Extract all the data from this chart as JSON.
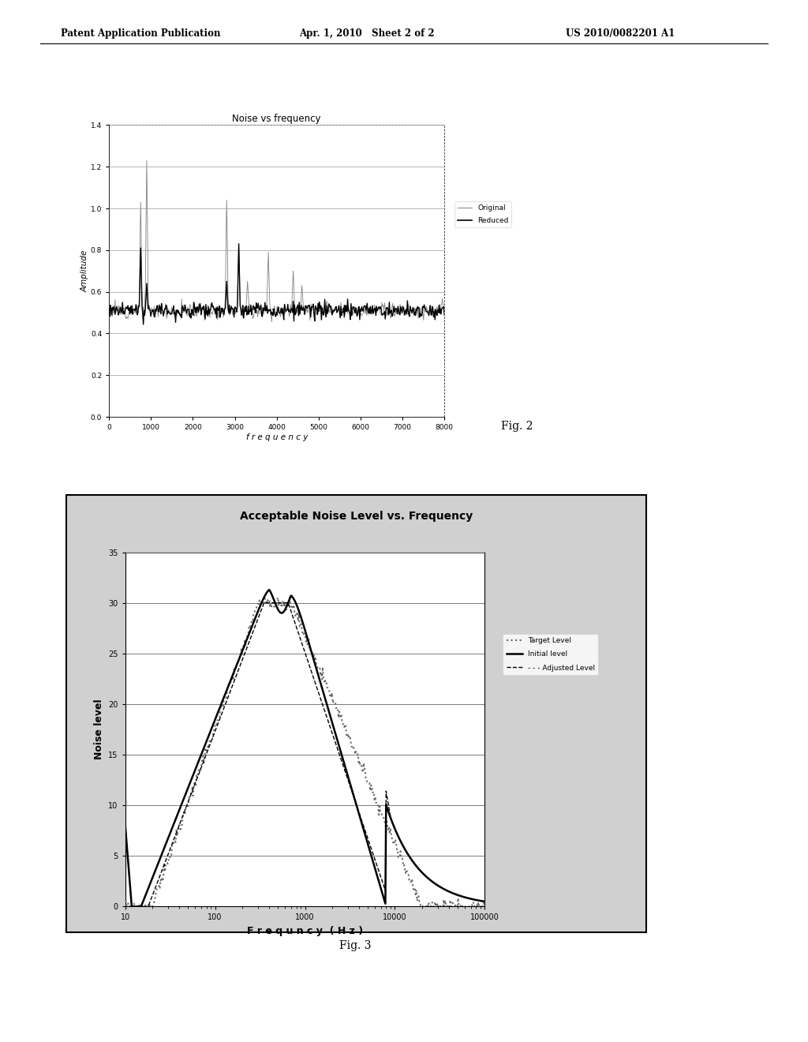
{
  "page_header_left": "Patent Application Publication",
  "page_header_mid": "Apr. 1, 2010   Sheet 2 of 2",
  "page_header_right": "US 2010/0082201 A1",
  "fig2_title": "Noise vs frequency",
  "fig2_xlabel": "f r e q u e n c y",
  "fig2_ylabel": "Amplitude",
  "fig2_xlim": [
    0,
    8000
  ],
  "fig2_ylim": [
    0,
    1.4
  ],
  "fig2_xticks": [
    0,
    1000,
    2000,
    3000,
    4000,
    5000,
    6000,
    7000,
    8000
  ],
  "fig2_yticks": [
    0,
    0.2,
    0.4,
    0.6,
    0.8,
    1.0,
    1.2,
    1.4
  ],
  "fig2_legend": [
    "Original",
    "Reduced"
  ],
  "fig2_caption": "Fig. 2",
  "fig3_title": "Acceptable Noise Level vs. Frequency",
  "fig3_xlabel": "F r e q u n c y  ( H z )",
  "fig3_ylabel": "Noise level",
  "fig3_ylim": [
    0,
    35
  ],
  "fig3_yticks": [
    0,
    5,
    10,
    15,
    20,
    25,
    30,
    35
  ],
  "fig3_xticks": [
    10,
    100,
    1000,
    10000,
    100000
  ],
  "fig3_xtick_labels": [
    "10",
    "100",
    "1000",
    "10000",
    "100000"
  ],
  "fig3_legend": [
    "Target Level",
    "Initial level",
    "- - - Adjusted Level"
  ],
  "fig3_caption": "Fig. 3",
  "background_color": "#f0f0f0",
  "page_bg_color": "#ffffff",
  "plot_bg_color": "#ffffff",
  "grid_color": "#888888",
  "fig3_bg_color": "#d0d0d0"
}
